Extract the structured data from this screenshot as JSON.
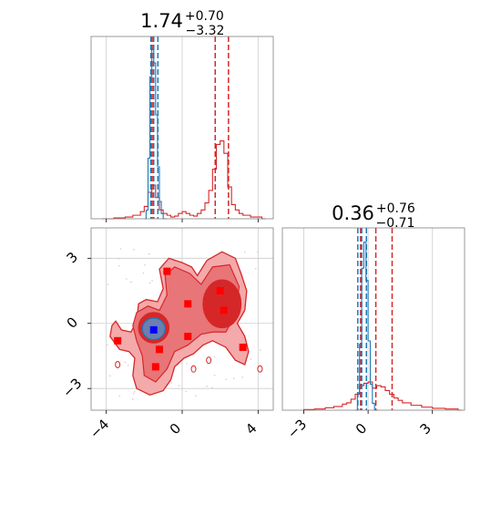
{
  "colors": {
    "red": "#d62728",
    "blue": "#1f77b4",
    "marker_red": "#ff0000",
    "marker_blue": "#0000ff",
    "grid": "#cccccc",
    "frame": "#808080"
  },
  "chart_data": [
    {
      "type": "line",
      "panel": "marginal-x",
      "title_value": "1.74",
      "title_plus": "+0.70",
      "title_minus": "−3.32",
      "xlim": [
        -4.8,
        4.8
      ],
      "ticks": [
        -4,
        0,
        4
      ],
      "grid": true,
      "series": [
        {
          "color": "red",
          "histogram_x": [
            -4.2,
            -3.6,
            -3.0,
            -2.6,
            -2.2,
            -2.0,
            -1.8,
            -1.6,
            -1.4,
            -1.2,
            -1.0,
            -0.8,
            -0.6,
            -0.4,
            -0.2,
            0.0,
            0.2,
            0.4,
            0.6,
            0.8,
            1.0,
            1.2,
            1.4,
            1.6,
            1.8,
            2.0,
            2.2,
            2.4,
            2.6,
            2.8,
            3.0,
            3.2,
            3.6,
            4.2
          ],
          "histogram_y": [
            0,
            0.005,
            0.01,
            0.02,
            0.04,
            0.07,
            0.15,
            0.19,
            0.12,
            0.05,
            0.03,
            0.02,
            0.01,
            0.015,
            0.03,
            0.04,
            0.03,
            0.02,
            0.015,
            0.03,
            0.05,
            0.09,
            0.16,
            0.28,
            0.42,
            0.44,
            0.37,
            0.18,
            0.08,
            0.05,
            0.03,
            0.02,
            0.01,
            0
          ],
          "quantiles": [
            -1.58,
            1.74,
            2.44
          ]
        },
        {
          "color": "blue",
          "histogram_x": [
            -2.0,
            -1.9,
            -1.8,
            -1.7,
            -1.6,
            -1.5,
            -1.4,
            -1.3,
            -1.2,
            -1.1,
            -1.0
          ],
          "histogram_y": [
            0,
            0.05,
            0.35,
            0.82,
            0.98,
            0.9,
            0.6,
            0.3,
            0.1,
            0.03,
            0
          ],
          "quantiles": [
            -1.65,
            -1.5,
            -1.28
          ]
        }
      ]
    },
    {
      "type": "line",
      "panel": "marginal-y",
      "title_value": "0.36",
      "title_plus": "+0.76",
      "title_minus": "−0.71",
      "xlim": [
        -4.0,
        4.5
      ],
      "ticks": [
        -3,
        0,
        3
      ],
      "grid": true,
      "series": [
        {
          "color": "red",
          "histogram_x": [
            -3.0,
            -2.5,
            -2.0,
            -1.6,
            -1.2,
            -1.0,
            -0.8,
            -0.6,
            -0.4,
            -0.2,
            0.0,
            0.2,
            0.4,
            0.6,
            0.8,
            1.0,
            1.2,
            1.4,
            1.6,
            2.0,
            2.5,
            3.0,
            3.6,
            4.2
          ],
          "histogram_y": [
            0.005,
            0.01,
            0.02,
            0.03,
            0.05,
            0.06,
            0.09,
            0.13,
            0.2,
            0.22,
            0.23,
            0.18,
            0.2,
            0.19,
            0.16,
            0.13,
            0.1,
            0.08,
            0.06,
            0.04,
            0.025,
            0.015,
            0.01,
            0
          ],
          "quantiles": [
            -0.35,
            0.36,
            1.12
          ]
        },
        {
          "color": "blue",
          "histogram_x": [
            -0.6,
            -0.5,
            -0.4,
            -0.3,
            -0.2,
            -0.1,
            0.0,
            0.1,
            0.2,
            0.3
          ],
          "histogram_y": [
            0,
            0.1,
            0.38,
            0.82,
            0.97,
            0.75,
            0.4,
            0.15,
            0.04,
            0
          ],
          "quantiles": [
            -0.48,
            -0.3,
            -0.08
          ]
        }
      ]
    },
    {
      "type": "scatter",
      "panel": "joint",
      "xlim": [
        -4.8,
        4.8
      ],
      "ylim": [
        -4.0,
        4.4
      ],
      "xticks": [
        -4,
        0,
        4
      ],
      "yticks": [
        -3,
        0,
        3
      ],
      "grid": true,
      "contour_levels": 3,
      "red_markers": [
        {
          "x": -3.4,
          "y": -0.8
        },
        {
          "x": -0.8,
          "y": 2.4
        },
        {
          "x": 0.3,
          "y": 0.9
        },
        {
          "x": 2.0,
          "y": 1.5
        },
        {
          "x": 2.2,
          "y": 0.6
        },
        {
          "x": -1.2,
          "y": -1.2
        },
        {
          "x": 0.3,
          "y": -0.6
        },
        {
          "x": -1.4,
          "y": -2.0
        },
        {
          "x": 3.2,
          "y": -1.1
        }
      ],
      "blue_markers": [
        {
          "x": -1.5,
          "y": -0.3
        }
      ]
    }
  ]
}
